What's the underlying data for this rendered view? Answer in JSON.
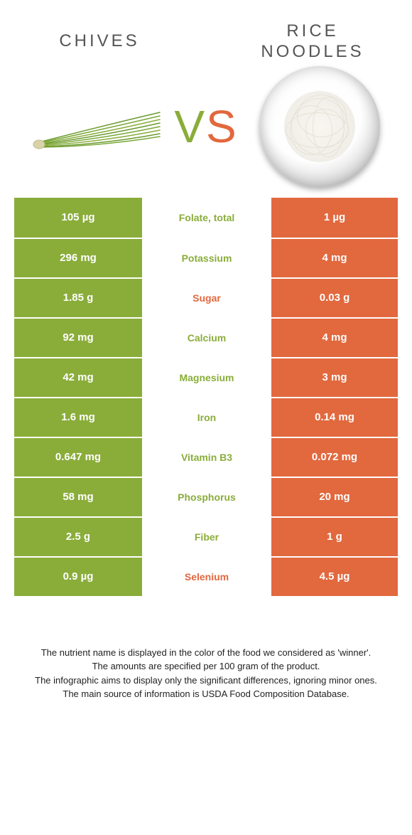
{
  "header": {
    "left_title": "CHIVES",
    "right_title_line1": "RICE",
    "right_title_line2": "NOODLES",
    "vs_v": "V",
    "vs_s": "S"
  },
  "colors": {
    "chives_green": "#8aad3a",
    "noodles_orange": "#e2683e",
    "text_gray": "#555555",
    "bg": "#ffffff"
  },
  "nutrients": [
    {
      "left": "105 µg",
      "name": "Folate, total",
      "right": "1 µg",
      "winner": "left"
    },
    {
      "left": "296 mg",
      "name": "Potassium",
      "right": "4 mg",
      "winner": "left"
    },
    {
      "left": "1.85 g",
      "name": "Sugar",
      "right": "0.03 g",
      "winner": "right"
    },
    {
      "left": "92 mg",
      "name": "Calcium",
      "right": "4 mg",
      "winner": "left"
    },
    {
      "left": "42 mg",
      "name": "Magnesium",
      "right": "3 mg",
      "winner": "left"
    },
    {
      "left": "1.6 mg",
      "name": "Iron",
      "right": "0.14 mg",
      "winner": "left"
    },
    {
      "left": "0.647 mg",
      "name": "Vitamin B3",
      "right": "0.072 mg",
      "winner": "left"
    },
    {
      "left": "58 mg",
      "name": "Phosphorus",
      "right": "20 mg",
      "winner": "left"
    },
    {
      "left": "2.5 g",
      "name": "Fiber",
      "right": "1 g",
      "winner": "left"
    },
    {
      "left": "0.9 µg",
      "name": "Selenium",
      "right": "4.5 µg",
      "winner": "right"
    }
  ],
  "footer": {
    "line1": "The nutrient name is displayed in the color of the food we considered as 'winner'.",
    "line2": "The amounts are specified per 100 gram of the product.",
    "line3": "The infographic aims to display only the significant differences, ignoring minor ones.",
    "line4": "The main source of information is USDA Food Composition Database."
  }
}
